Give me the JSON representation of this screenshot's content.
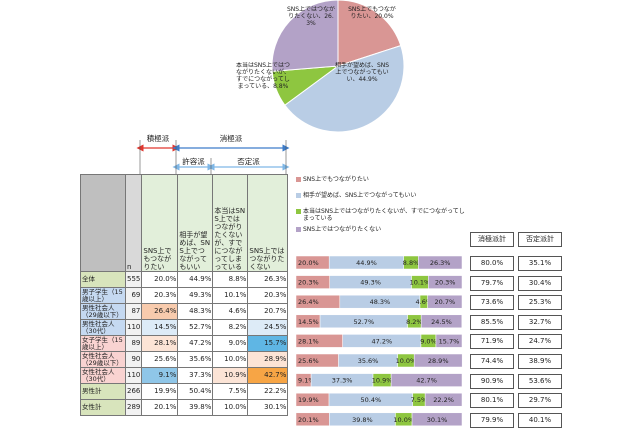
{
  "colors": {
    "want": "#D99694",
    "ok": "#B9CDE5",
    "conn": "#8EC640",
    "not": "#B3A2C7",
    "cell_want": "#E6F2DE",
    "cell_ok": "#E6F2DE",
    "cell_conn": "#E6F2DE",
    "cell_not": "#E6F2DE",
    "row_male": "#C5D9F1",
    "row_female": "#F9D3D1",
    "row_total": "#D8E4BC",
    "header": "#D9D9D9",
    "highlight_blue": "#8FC6E8",
    "highlight_orange": "#F8C69A",
    "highlight_pink": "#F4B8B0",
    "highlight_orange_strong": "#F7A545",
    "highlight_blue_strong": "#67B7E6"
  },
  "header": {
    "group_positive": "積極派",
    "group_negative": "消極派",
    "group_tolerant": "許容派",
    "group_denial": "否定派",
    "col_n": "n",
    "col_want": "SNS上でもつながりたい",
    "col_ok": "相手が望めば、SNS上でつながってもいい",
    "col_conn": "本当はSNS上ではつながりたくないが、すでにつながってしまっている",
    "col_not": "SNS上ではつながりたくない"
  },
  "rows": [
    {
      "label": "全体",
      "n": "555",
      "want": "20.0%",
      "ok": "44.9%",
      "conn": "8.8%",
      "not": "26.3%",
      "cat": "total"
    },
    {
      "label": "男子学生（15歳以上）",
      "n": "69",
      "want": "20.3%",
      "ok": "49.3%",
      "conn": "10.1%",
      "not": "20.3%",
      "cat": "male"
    },
    {
      "label": "男性社会人（29歳以下）",
      "n": "87",
      "want": "26.4%",
      "ok": "48.3%",
      "conn": "4.6%",
      "not": "20.7%",
      "cat": "male"
    },
    {
      "label": "男性社会人（30代）",
      "n": "110",
      "want": "14.5%",
      "ok": "52.7%",
      "conn": "8.2%",
      "not": "24.5%",
      "cat": "male"
    },
    {
      "label": "女子学生（15歳以上）",
      "n": "89",
      "want": "28.1%",
      "ok": "47.2%",
      "conn": "9.0%",
      "not": "15.7%",
      "cat": "female"
    },
    {
      "label": "女性社会人（29歳以下）",
      "n": "90",
      "want": "25.6%",
      "ok": "35.6%",
      "conn": "10.0%",
      "not": "28.9%",
      "cat": "female"
    },
    {
      "label": "女性社会人（30代）",
      "n": "110",
      "want": "9.1%",
      "ok": "37.3%",
      "conn": "10.9%",
      "not": "42.7%",
      "cat": "female"
    },
    {
      "label": "男性計",
      "n": "266",
      "want": "19.9%",
      "ok": "50.4%",
      "conn": "7.5%",
      "not": "22.2%",
      "cat": "total"
    },
    {
      "label": "女性計",
      "n": "289",
      "want": "20.1%",
      "ok": "39.8%",
      "conn": "10.0%",
      "not": "30.1%",
      "cat": "total"
    }
  ],
  "totals": {
    "header_neg": "消極派計",
    "header_den": "否定派計",
    "neg": [
      "80.0%",
      "79.7%",
      "73.6%",
      "85.5%",
      "71.9%",
      "74.4%",
      "90.9%",
      "80.1%",
      "79.9%"
    ],
    "den": [
      "35.1%",
      "30.4%",
      "25.3%",
      "32.7%",
      "24.7%",
      "38.9%",
      "53.6%",
      "29.7%",
      "40.1%"
    ]
  },
  "legend": [
    "SNS上でもつながりたい",
    "相手が望めば、SNS上でつながってもいい",
    "本当はSNS上ではつながりたくないが、すでにつながってしまっている",
    "SNS上ではつながりたくない"
  ],
  "chart_data": [
    {
      "type": "pie",
      "labels": [
        "SNS上でもつながりたい",
        "相手が望めば、SNS上でつながってもいい",
        "本当はSNS上ではつながりたくないが、すでにつながってしまっている",
        "SNS上ではつながりたくない"
      ],
      "values": [
        20.0,
        44.9,
        8.8,
        26.3
      ],
      "slice_text": [
        "SNS上でもつながりたい、20.0%",
        "相手が望めば、SNS上でつながってもいい、44.9%",
        "本当はSNS上ではつながりたくないが、すでにつながってしまっている、8.8%",
        "SNS上ではつながりたくない、26.3%"
      ]
    },
    {
      "type": "bar",
      "orientation": "horizontal",
      "stacked": true,
      "categories": [
        "全体",
        "男子学生（15歳以上）",
        "男性社会人（29歳以下）",
        "男性社会人（30代）",
        "女子学生（15歳以上）",
        "女性社会人（29歳以下）",
        "女性社会人（30代）",
        "男性計",
        "女性計"
      ],
      "series": [
        {
          "name": "SNS上でもつながりたい",
          "values": [
            20.0,
            20.3,
            26.4,
            14.5,
            28.1,
            25.6,
            9.1,
            19.9,
            20.1
          ]
        },
        {
          "name": "相手が望めば、SNS上でつながってもいい",
          "values": [
            44.9,
            49.3,
            48.3,
            52.7,
            47.2,
            35.6,
            37.3,
            50.4,
            39.8
          ]
        },
        {
          "name": "本当はSNS上ではつながりたくないが、すでにつながってしまっている",
          "values": [
            8.8,
            10.1,
            4.6,
            8.2,
            9.0,
            10.0,
            10.9,
            7.5,
            10.0
          ]
        },
        {
          "name": "SNS上ではつながりたくない",
          "values": [
            26.3,
            20.3,
            20.7,
            24.5,
            15.7,
            28.9,
            42.7,
            22.2,
            30.1
          ]
        }
      ],
      "xlim": [
        0,
        100
      ]
    }
  ]
}
